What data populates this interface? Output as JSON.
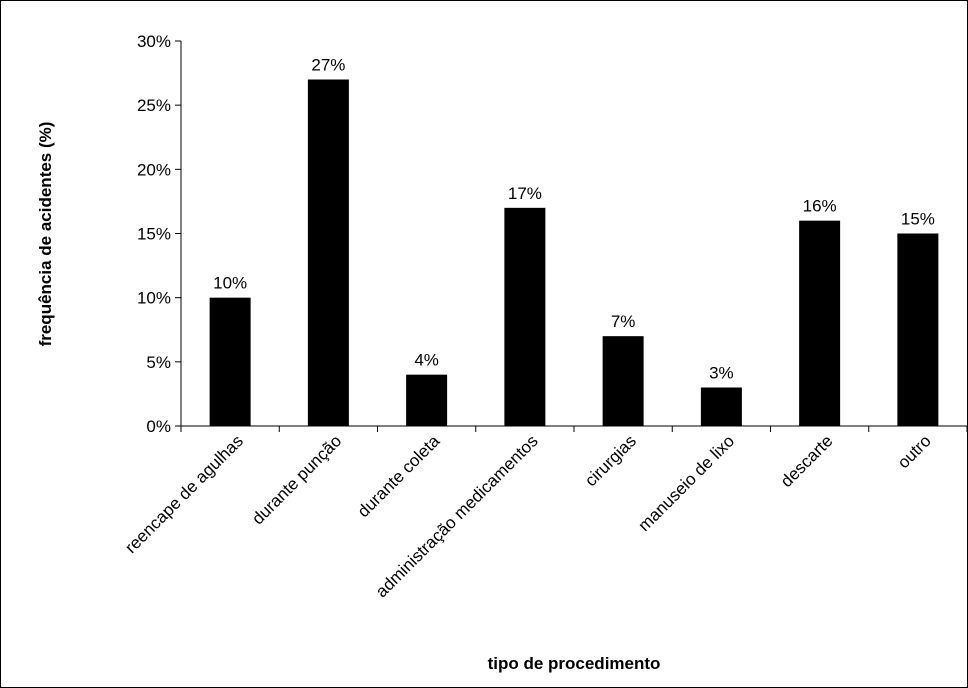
{
  "chart_data": {
    "type": "bar",
    "categories": [
      "reencape de agulhas",
      "durante punção",
      "durante coleta",
      "administração medicamentos",
      "cirurgias",
      "manuseio de lixo",
      "descarte",
      "outro"
    ],
    "values": [
      10,
      27,
      4,
      17,
      7,
      3,
      16,
      15
    ],
    "value_labels": [
      "10%",
      "27%",
      "4%",
      "17%",
      "7%",
      "3%",
      "16%",
      "15%"
    ],
    "xlabel": "tipo de procedimento",
    "ylabel": "frequência de acidentes (%)",
    "ylim": [
      0,
      30
    ],
    "yticks": [
      0,
      5,
      10,
      15,
      20,
      25,
      30
    ],
    "ytick_labels": [
      "0%",
      "5%",
      "10%",
      "15%",
      "20%",
      "25%",
      "30%"
    ],
    "bar_color": "#000000",
    "grid": false,
    "legend": "none"
  }
}
